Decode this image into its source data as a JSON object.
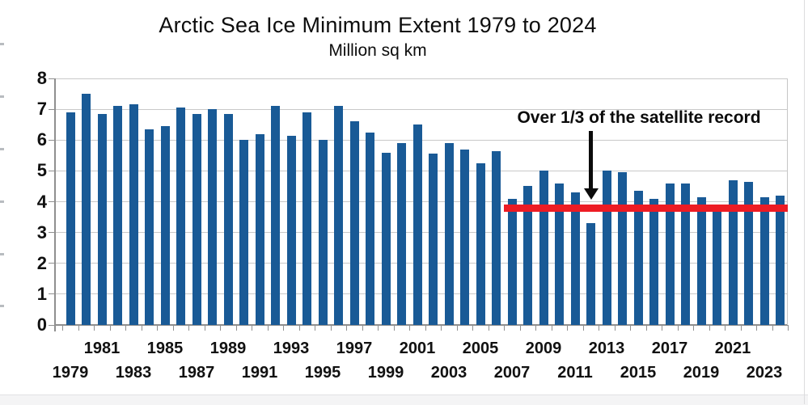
{
  "chart_data": {
    "type": "bar",
    "title": "Arctic Sea Ice Minimum Extent 1979 to 2024",
    "subtitle": "Million sq km",
    "ylim": [
      0,
      8
    ],
    "yticks": [
      0,
      1,
      2,
      3,
      4,
      5,
      6,
      7,
      8
    ],
    "grid": true,
    "bar_color": "#195a96",
    "categories": [
      1979,
      1980,
      1981,
      1982,
      1983,
      1984,
      1985,
      1986,
      1987,
      1988,
      1989,
      1990,
      1991,
      1992,
      1993,
      1994,
      1995,
      1996,
      1997,
      1998,
      1999,
      2000,
      2001,
      2002,
      2003,
      2004,
      2005,
      2006,
      2007,
      2008,
      2009,
      2010,
      2011,
      2012,
      2013,
      2014,
      2015,
      2016,
      2017,
      2018,
      2019,
      2020,
      2021,
      2022,
      2023,
      2024
    ],
    "values": [
      6.9,
      7.5,
      6.85,
      7.1,
      7.15,
      6.35,
      6.45,
      7.05,
      6.85,
      7.0,
      6.85,
      6.0,
      6.2,
      7.1,
      6.15,
      6.9,
      6.0,
      7.1,
      6.6,
      6.25,
      5.6,
      5.9,
      6.5,
      5.55,
      5.9,
      5.7,
      5.25,
      5.65,
      4.1,
      4.5,
      5.0,
      4.6,
      4.3,
      3.3,
      5.0,
      4.95,
      4.35,
      4.1,
      4.6,
      4.6,
      4.15,
      3.75,
      4.7,
      4.65,
      4.15,
      4.2
    ],
    "xtick_rows": {
      "upper": [
        1981,
        1985,
        1989,
        1993,
        1997,
        2001,
        2005,
        2009,
        2013,
        2017,
        2021
      ],
      "lower": [
        1979,
        1983,
        1987,
        1991,
        1995,
        1999,
        2003,
        2007,
        2011,
        2015,
        2019,
        2023
      ]
    },
    "reference_line": {
      "value": 3.8,
      "start_year": 2007,
      "end_year": 2024,
      "color": "#ed1c24"
    },
    "annotation": {
      "text": "Over 1/3 of the satellite record",
      "arrow_year": 2012
    },
    "legend_position": "none"
  },
  "colors": {
    "gridline": "#c9c9c9",
    "axis": "#8f8f8f",
    "text": "#111111",
    "background": "#ffffff"
  }
}
